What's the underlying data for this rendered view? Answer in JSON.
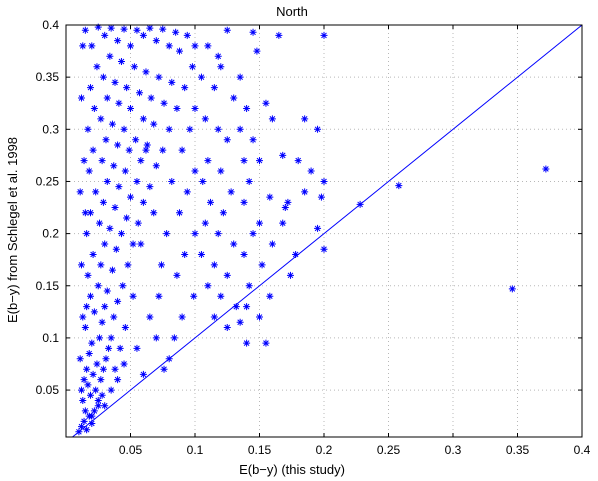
{
  "chart_data": {
    "type": "scatter",
    "title": "North",
    "xlabel": "E(b−y) (this study)",
    "ylabel": "E(b−y) from Schlegel et al. 1998",
    "xlim": [
      0.0,
      0.4
    ],
    "ylim": [
      0.005,
      0.4
    ],
    "xticks": [
      0.05,
      0.1,
      0.15,
      0.2,
      0.25,
      0.3,
      0.35,
      0.4
    ],
    "xtick_labels": [
      "0.05",
      "0.1",
      "0.15",
      "0.2",
      "0.25",
      "0.3",
      "0.35",
      "0.4"
    ],
    "yticks": [
      0.05,
      0.1,
      0.15,
      0.2,
      0.25,
      0.3,
      0.35,
      0.4
    ],
    "ytick_labels": [
      "0.05",
      "0.1",
      "0.15",
      "0.2",
      "0.25",
      "0.3",
      "0.35",
      "0.4"
    ],
    "grid": true,
    "marker": "asterisk",
    "color": "#0000ff",
    "reference_line": {
      "x": [
        0.0,
        0.4
      ],
      "y": [
        0.0,
        0.4
      ]
    },
    "points": [
      [
        0.01,
        0.01
      ],
      [
        0.012,
        0.015
      ],
      [
        0.014,
        0.02
      ],
      [
        0.016,
        0.012
      ],
      [
        0.018,
        0.025
      ],
      [
        0.015,
        0.03
      ],
      [
        0.02,
        0.018
      ],
      [
        0.022,
        0.03
      ],
      [
        0.013,
        0.04
      ],
      [
        0.019,
        0.045
      ],
      [
        0.017,
        0.055
      ],
      [
        0.023,
        0.05
      ],
      [
        0.025,
        0.04
      ],
      [
        0.021,
        0.065
      ],
      [
        0.016,
        0.07
      ],
      [
        0.027,
        0.06
      ],
      [
        0.024,
        0.075
      ],
      [
        0.018,
        0.085
      ],
      [
        0.029,
        0.07
      ],
      [
        0.031,
        0.08
      ],
      [
        0.02,
        0.095
      ],
      [
        0.026,
        0.1
      ],
      [
        0.033,
        0.09
      ],
      [
        0.015,
        0.11
      ],
      [
        0.028,
        0.115
      ],
      [
        0.035,
        0.1
      ],
      [
        0.022,
        0.125
      ],
      [
        0.03,
        0.13
      ],
      [
        0.037,
        0.12
      ],
      [
        0.019,
        0.14
      ],
      [
        0.025,
        0.15
      ],
      [
        0.032,
        0.145
      ],
      [
        0.04,
        0.135
      ],
      [
        0.017,
        0.16
      ],
      [
        0.027,
        0.17
      ],
      [
        0.036,
        0.165
      ],
      [
        0.044,
        0.15
      ],
      [
        0.021,
        0.18
      ],
      [
        0.03,
        0.19
      ],
      [
        0.039,
        0.185
      ],
      [
        0.048,
        0.17
      ],
      [
        0.016,
        0.2
      ],
      [
        0.026,
        0.21
      ],
      [
        0.034,
        0.205
      ],
      [
        0.043,
        0.2
      ],
      [
        0.052,
        0.19
      ],
      [
        0.019,
        0.22
      ],
      [
        0.029,
        0.23
      ],
      [
        0.038,
        0.225
      ],
      [
        0.047,
        0.215
      ],
      [
        0.056,
        0.21
      ],
      [
        0.023,
        0.24
      ],
      [
        0.032,
        0.25
      ],
      [
        0.041,
        0.245
      ],
      [
        0.05,
        0.235
      ],
      [
        0.06,
        0.23
      ],
      [
        0.018,
        0.26
      ],
      [
        0.028,
        0.27
      ],
      [
        0.037,
        0.265
      ],
      [
        0.046,
        0.26
      ],
      [
        0.055,
        0.25
      ],
      [
        0.065,
        0.245
      ],
      [
        0.021,
        0.28
      ],
      [
        0.031,
        0.29
      ],
      [
        0.04,
        0.285
      ],
      [
        0.049,
        0.28
      ],
      [
        0.058,
        0.27
      ],
      [
        0.07,
        0.265
      ],
      [
        0.017,
        0.3
      ],
      [
        0.027,
        0.31
      ],
      [
        0.036,
        0.305
      ],
      [
        0.045,
        0.3
      ],
      [
        0.054,
        0.29
      ],
      [
        0.063,
        0.285
      ],
      [
        0.075,
        0.28
      ],
      [
        0.022,
        0.32
      ],
      [
        0.032,
        0.33
      ],
      [
        0.041,
        0.325
      ],
      [
        0.05,
        0.32
      ],
      [
        0.06,
        0.31
      ],
      [
        0.068,
        0.305
      ],
      [
        0.08,
        0.3
      ],
      [
        0.019,
        0.34
      ],
      [
        0.029,
        0.35
      ],
      [
        0.038,
        0.345
      ],
      [
        0.047,
        0.34
      ],
      [
        0.057,
        0.335
      ],
      [
        0.066,
        0.33
      ],
      [
        0.076,
        0.325
      ],
      [
        0.024,
        0.36
      ],
      [
        0.034,
        0.37
      ],
      [
        0.043,
        0.365
      ],
      [
        0.053,
        0.36
      ],
      [
        0.062,
        0.355
      ],
      [
        0.072,
        0.35
      ],
      [
        0.082,
        0.345
      ],
      [
        0.02,
        0.38
      ],
      [
        0.03,
        0.39
      ],
      [
        0.04,
        0.385
      ],
      [
        0.05,
        0.38
      ],
      [
        0.06,
        0.39
      ],
      [
        0.07,
        0.385
      ],
      [
        0.08,
        0.38
      ],
      [
        0.088,
        0.375
      ],
      [
        0.015,
        0.395
      ],
      [
        0.025,
        0.398
      ],
      [
        0.035,
        0.397
      ],
      [
        0.045,
        0.396
      ],
      [
        0.055,
        0.395
      ],
      [
        0.065,
        0.397
      ],
      [
        0.075,
        0.396
      ],
      [
        0.085,
        0.393
      ],
      [
        0.094,
        0.39
      ],
      [
        0.1,
        0.38
      ],
      [
        0.098,
        0.36
      ],
      [
        0.092,
        0.34
      ],
      [
        0.1,
        0.32
      ],
      [
        0.096,
        0.3
      ],
      [
        0.09,
        0.28
      ],
      [
        0.1,
        0.26
      ],
      [
        0.094,
        0.24
      ],
      [
        0.088,
        0.22
      ],
      [
        0.1,
        0.2
      ],
      [
        0.092,
        0.18
      ],
      [
        0.086,
        0.16
      ],
      [
        0.099,
        0.14
      ],
      [
        0.09,
        0.12
      ],
      [
        0.084,
        0.1
      ],
      [
        0.08,
        0.08
      ],
      [
        0.076,
        0.07
      ],
      [
        0.11,
        0.38
      ],
      [
        0.12,
        0.36
      ],
      [
        0.105,
        0.35
      ],
      [
        0.115,
        0.34
      ],
      [
        0.13,
        0.33
      ],
      [
        0.108,
        0.31
      ],
      [
        0.118,
        0.3
      ],
      [
        0.125,
        0.29
      ],
      [
        0.11,
        0.27
      ],
      [
        0.12,
        0.26
      ],
      [
        0.106,
        0.25
      ],
      [
        0.128,
        0.24
      ],
      [
        0.112,
        0.23
      ],
      [
        0.122,
        0.22
      ],
      [
        0.108,
        0.21
      ],
      [
        0.118,
        0.2
      ],
      [
        0.13,
        0.19
      ],
      [
        0.105,
        0.18
      ],
      [
        0.115,
        0.17
      ],
      [
        0.125,
        0.16
      ],
      [
        0.11,
        0.15
      ],
      [
        0.12,
        0.14
      ],
      [
        0.132,
        0.13
      ],
      [
        0.115,
        0.12
      ],
      [
        0.125,
        0.11
      ],
      [
        0.135,
        0.115
      ],
      [
        0.14,
        0.095
      ],
      [
        0.155,
        0.095
      ],
      [
        0.145,
        0.393
      ],
      [
        0.148,
        0.375
      ],
      [
        0.135,
        0.35
      ],
      [
        0.14,
        0.32
      ],
      [
        0.155,
        0.325
      ],
      [
        0.135,
        0.3
      ],
      [
        0.145,
        0.29
      ],
      [
        0.16,
        0.31
      ],
      [
        0.138,
        0.27
      ],
      [
        0.15,
        0.27
      ],
      [
        0.142,
        0.25
      ],
      [
        0.158,
        0.235
      ],
      [
        0.138,
        0.23
      ],
      [
        0.15,
        0.21
      ],
      [
        0.145,
        0.2
      ],
      [
        0.16,
        0.19
      ],
      [
        0.138,
        0.18
      ],
      [
        0.152,
        0.17
      ],
      [
        0.142,
        0.15
      ],
      [
        0.158,
        0.14
      ],
      [
        0.14,
        0.13
      ],
      [
        0.15,
        0.12
      ],
      [
        0.185,
        0.31
      ],
      [
        0.195,
        0.3
      ],
      [
        0.18,
        0.27
      ],
      [
        0.19,
        0.26
      ],
      [
        0.2,
        0.25
      ],
      [
        0.185,
        0.24
      ],
      [
        0.198,
        0.235
      ],
      [
        0.17,
        0.225
      ],
      [
        0.195,
        0.205
      ],
      [
        0.178,
        0.18
      ],
      [
        0.2,
        0.185
      ],
      [
        0.2,
        0.39
      ],
      [
        0.228,
        0.228
      ],
      [
        0.258,
        0.246
      ],
      [
        0.346,
        0.147
      ],
      [
        0.372,
        0.262
      ],
      [
        0.055,
        0.09
      ],
      [
        0.045,
        0.075
      ],
      [
        0.06,
        0.065
      ],
      [
        0.035,
        0.05
      ],
      [
        0.04,
        0.06
      ],
      [
        0.028,
        0.045
      ],
      [
        0.025,
        0.035
      ],
      [
        0.02,
        0.025
      ],
      [
        0.03,
        0.035
      ],
      [
        0.012,
        0.05
      ],
      [
        0.011,
        0.08
      ],
      [
        0.013,
        0.12
      ],
      [
        0.012,
        0.17
      ],
      [
        0.011,
        0.24
      ],
      [
        0.012,
        0.33
      ],
      [
        0.013,
        0.38
      ],
      [
        0.014,
        0.27
      ],
      [
        0.015,
        0.22
      ],
      [
        0.016,
        0.13
      ],
      [
        0.014,
        0.06
      ],
      [
        0.07,
        0.1
      ],
      [
        0.065,
        0.12
      ],
      [
        0.072,
        0.14
      ],
      [
        0.078,
        0.2
      ],
      [
        0.082,
        0.25
      ],
      [
        0.068,
        0.22
      ],
      [
        0.074,
        0.17
      ],
      [
        0.086,
        0.32
      ],
      [
        0.062,
        0.28
      ],
      [
        0.058,
        0.19
      ],
      [
        0.052,
        0.14
      ],
      [
        0.046,
        0.11
      ],
      [
        0.042,
        0.09
      ],
      [
        0.038,
        0.07
      ],
      [
        0.165,
        0.39
      ],
      [
        0.125,
        0.395
      ],
      [
        0.118,
        0.37
      ],
      [
        0.168,
        0.275
      ],
      [
        0.172,
        0.23
      ],
      [
        0.168,
        0.21
      ],
      [
        0.174,
        0.16
      ]
    ]
  }
}
